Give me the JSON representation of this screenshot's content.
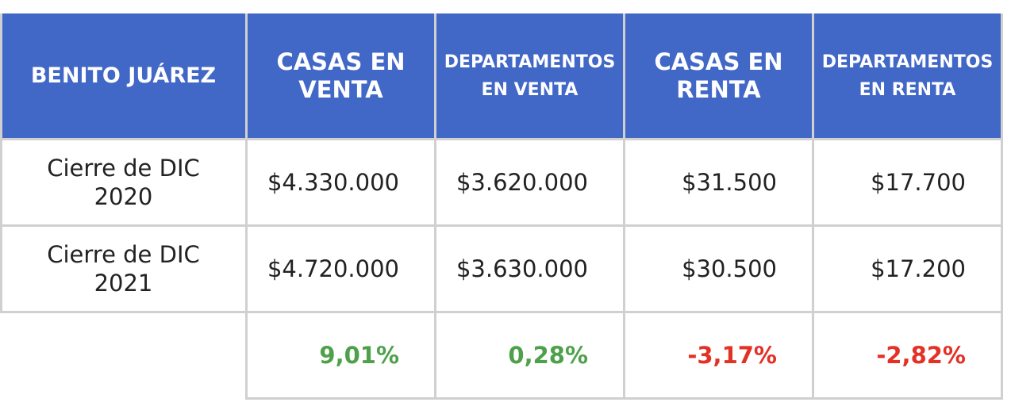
{
  "table": {
    "header": {
      "location": "BENITO JUÁREZ",
      "col1": [
        "CASAS EN",
        "VENTA"
      ],
      "col2": [
        "DEPARTAMENTOS",
        "EN VENTA"
      ],
      "col3": [
        "CASAS EN",
        "RENTA"
      ],
      "col4": [
        "DEPARTAMENTOS",
        "EN RENTA"
      ]
    },
    "rows": [
      {
        "label": [
          "Cierre de DIC",
          "2020"
        ],
        "values": [
          "$4.330.000",
          "$3.620.000",
          "$31.500",
          "$17.700"
        ]
      },
      {
        "label": [
          "Cierre de DIC",
          "2021"
        ],
        "values": [
          "$4.720.000",
          "$3.630.000",
          "$30.500",
          "$17.200"
        ]
      }
    ],
    "changes": [
      "9,01%",
      "0,28%",
      "-3,17%",
      "-2,82%"
    ],
    "colors": {
      "header_bg": "#4167c7",
      "positive": "#4ea14a",
      "negative": "#e33126",
      "border": "#d0d0d0"
    }
  }
}
